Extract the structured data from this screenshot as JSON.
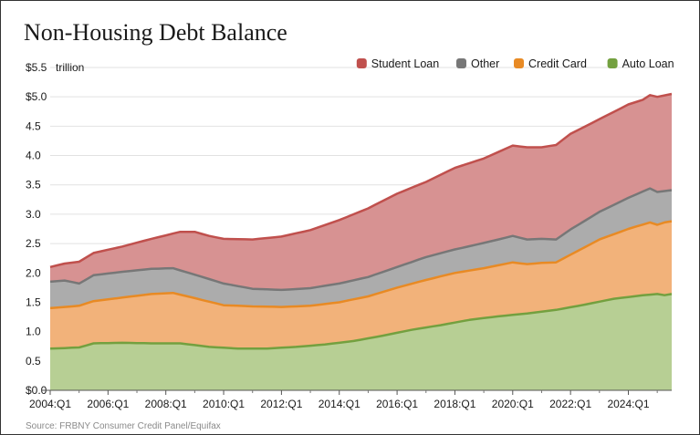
{
  "page": {
    "title": "Non-Housing Debt Balance",
    "source": "Source: FRBNY Consumer Credit Panel/Equifax"
  },
  "chart_data": {
    "type": "area",
    "stacked": true,
    "title": "Non-Housing Debt Balance",
    "ylabel": "$ trillion",
    "unit_label": "trillion",
    "ylim": [
      0,
      5.5
    ],
    "y_ticks": [
      {
        "value": 0.0,
        "label": "$0.0"
      },
      {
        "value": 0.5,
        "label": "0.5"
      },
      {
        "value": 1.0,
        "label": "1.0"
      },
      {
        "value": 1.5,
        "label": "1.5"
      },
      {
        "value": 2.0,
        "label": "2.0"
      },
      {
        "value": 2.5,
        "label": "2.5"
      },
      {
        "value": 3.0,
        "label": "3.0"
      },
      {
        "value": 3.5,
        "label": "3.5"
      },
      {
        "value": 4.0,
        "label": "4.0"
      },
      {
        "value": 4.5,
        "label": "4.5"
      },
      {
        "value": 5.0,
        "label": "$5.0"
      },
      {
        "value": 5.5,
        "label": "$5.5"
      }
    ],
    "x_ticks": [
      {
        "index": 0,
        "label": "2004:Q1"
      },
      {
        "index": 8,
        "label": "2006:Q1"
      },
      {
        "index": 16,
        "label": "2008:Q1"
      },
      {
        "index": 24,
        "label": "2010:Q1"
      },
      {
        "index": 32,
        "label": "2012:Q1"
      },
      {
        "index": 40,
        "label": "2014:Q1"
      },
      {
        "index": 48,
        "label": "2016:Q1"
      },
      {
        "index": 56,
        "label": "2018:Q1"
      },
      {
        "index": 64,
        "label": "2020:Q1"
      },
      {
        "index": 72,
        "label": "2022:Q1"
      },
      {
        "index": 80,
        "label": "2024:Q1"
      }
    ],
    "grid": "horizontal",
    "legend_position": "top-right",
    "x_start": "2004:Q1",
    "x_end": "2025:Q2",
    "series": [
      {
        "name": "Auto Loan",
        "fill": "#b7cf94",
        "line": "#73a03f",
        "points": [
          [
            0,
            0.71
          ],
          [
            4,
            0.73
          ],
          [
            6,
            0.8
          ],
          [
            10,
            0.81
          ],
          [
            14,
            0.8
          ],
          [
            18,
            0.8
          ],
          [
            22,
            0.74
          ],
          [
            26,
            0.71
          ],
          [
            30,
            0.71
          ],
          [
            34,
            0.74
          ],
          [
            38,
            0.78
          ],
          [
            42,
            0.84
          ],
          [
            46,
            0.93
          ],
          [
            50,
            1.03
          ],
          [
            54,
            1.11
          ],
          [
            58,
            1.2
          ],
          [
            62,
            1.26
          ],
          [
            66,
            1.31
          ],
          [
            70,
            1.37
          ],
          [
            74,
            1.46
          ],
          [
            78,
            1.56
          ],
          [
            82,
            1.62
          ],
          [
            84,
            1.64
          ],
          [
            85,
            1.62
          ],
          [
            86,
            1.64
          ]
        ]
      },
      {
        "name": "Credit Card",
        "fill": "#f2b27a",
        "line": "#e88a24",
        "points": [
          [
            0,
            1.4
          ],
          [
            4,
            1.44
          ],
          [
            6,
            1.52
          ],
          [
            10,
            1.58
          ],
          [
            14,
            1.64
          ],
          [
            17,
            1.66
          ],
          [
            20,
            1.57
          ],
          [
            24,
            1.45
          ],
          [
            28,
            1.43
          ],
          [
            32,
            1.42
          ],
          [
            36,
            1.44
          ],
          [
            40,
            1.5
          ],
          [
            44,
            1.6
          ],
          [
            48,
            1.75
          ],
          [
            52,
            1.88
          ],
          [
            56,
            2.0
          ],
          [
            60,
            2.08
          ],
          [
            64,
            2.18
          ],
          [
            66,
            2.15
          ],
          [
            68,
            2.17
          ],
          [
            70,
            2.18
          ],
          [
            72,
            2.31
          ],
          [
            76,
            2.57
          ],
          [
            80,
            2.75
          ],
          [
            83,
            2.86
          ],
          [
            84,
            2.82
          ],
          [
            85,
            2.86
          ],
          [
            86,
            2.88
          ]
        ]
      },
      {
        "name": "Other",
        "fill": "#acacac",
        "line": "#777777",
        "points": [
          [
            0,
            1.85
          ],
          [
            2,
            1.87
          ],
          [
            4,
            1.82
          ],
          [
            6,
            1.96
          ],
          [
            10,
            2.02
          ],
          [
            14,
            2.07
          ],
          [
            17,
            2.08
          ],
          [
            20,
            1.97
          ],
          [
            24,
            1.82
          ],
          [
            28,
            1.73
          ],
          [
            32,
            1.71
          ],
          [
            36,
            1.74
          ],
          [
            40,
            1.82
          ],
          [
            44,
            1.93
          ],
          [
            48,
            2.1
          ],
          [
            52,
            2.27
          ],
          [
            56,
            2.4
          ],
          [
            60,
            2.51
          ],
          [
            64,
            2.63
          ],
          [
            66,
            2.57
          ],
          [
            68,
            2.58
          ],
          [
            70,
            2.57
          ],
          [
            72,
            2.74
          ],
          [
            76,
            3.04
          ],
          [
            80,
            3.28
          ],
          [
            83,
            3.44
          ],
          [
            84,
            3.38
          ],
          [
            86,
            3.41
          ]
        ]
      },
      {
        "name": "Student Loan",
        "fill": "#d79292",
        "line": "#c0504d",
        "points": [
          [
            0,
            2.1
          ],
          [
            2,
            2.16
          ],
          [
            4,
            2.19
          ],
          [
            6,
            2.34
          ],
          [
            10,
            2.45
          ],
          [
            14,
            2.58
          ],
          [
            18,
            2.7
          ],
          [
            20,
            2.7
          ],
          [
            22,
            2.63
          ],
          [
            24,
            2.58
          ],
          [
            28,
            2.57
          ],
          [
            32,
            2.62
          ],
          [
            36,
            2.73
          ],
          [
            40,
            2.9
          ],
          [
            44,
            3.1
          ],
          [
            48,
            3.35
          ],
          [
            52,
            3.55
          ],
          [
            56,
            3.79
          ],
          [
            60,
            3.95
          ],
          [
            64,
            4.17
          ],
          [
            66,
            4.14
          ],
          [
            68,
            4.14
          ],
          [
            70,
            4.18
          ],
          [
            72,
            4.37
          ],
          [
            76,
            4.62
          ],
          [
            80,
            4.87
          ],
          [
            82,
            4.95
          ],
          [
            83,
            5.03
          ],
          [
            84,
            5.0
          ],
          [
            86,
            5.05
          ]
        ]
      }
    ]
  }
}
